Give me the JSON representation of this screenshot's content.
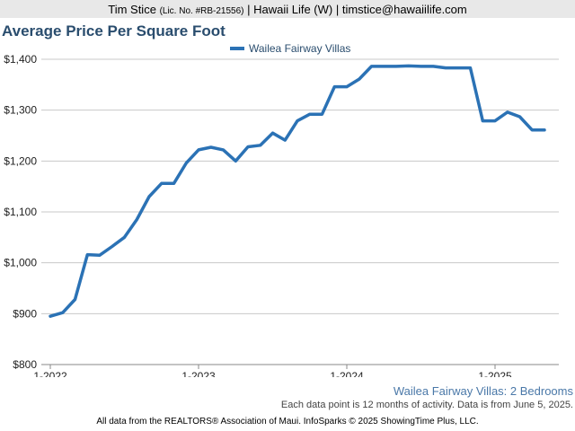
{
  "header": {
    "agent_name": "Tim Stice",
    "license": "(Lic. No. #RB-21556)",
    "rest": "| Hawaii Life (W) | timstice@hawaiilife.com"
  },
  "chart_data": {
    "type": "line",
    "title": "Average Price Per Square Foot",
    "xlabel": "",
    "ylabel": "",
    "ylim": [
      800,
      1400
    ],
    "yticks": [
      800,
      900,
      1000,
      1100,
      1200,
      1300,
      1400
    ],
    "ytick_labels": [
      "$800",
      "$900",
      "$1,000",
      "$1,100",
      "$1,200",
      "$1,300",
      "$1,400"
    ],
    "xticks": [
      "2022-01",
      "2023-01",
      "2024-01",
      "2025-01"
    ],
    "xtick_labels": [
      "1-2022",
      "1-2023",
      "1-2024",
      "1-2025"
    ],
    "x": [
      "2022-01",
      "2022-02",
      "2022-03",
      "2022-04",
      "2022-05",
      "2022-06",
      "2022-07",
      "2022-08",
      "2022-09",
      "2022-10",
      "2022-11",
      "2022-12",
      "2023-01",
      "2023-02",
      "2023-03",
      "2023-04",
      "2023-05",
      "2023-06",
      "2023-07",
      "2023-08",
      "2023-09",
      "2023-10",
      "2023-11",
      "2023-12",
      "2024-01",
      "2024-02",
      "2024-03",
      "2024-04",
      "2024-05",
      "2024-06",
      "2024-07",
      "2024-08",
      "2024-09",
      "2024-10",
      "2024-11",
      "2024-12",
      "2025-01",
      "2025-02",
      "2025-03",
      "2025-04",
      "2025-05"
    ],
    "series": [
      {
        "name": "Wailea Fairway Villas",
        "color": "#2b72b5",
        "values": [
          895,
          902,
          928,
          1016,
          1015,
          1032,
          1050,
          1085,
          1130,
          1156,
          1156,
          1196,
          1222,
          1227,
          1222,
          1200,
          1228,
          1231,
          1255,
          1241,
          1279,
          1292,
          1292,
          1346,
          1346,
          1361,
          1386,
          1386,
          1386,
          1387,
          1386,
          1386,
          1383,
          1383,
          1383,
          1279,
          1279,
          1296,
          1287,
          1261,
          1261
        ]
      }
    ],
    "grid": true,
    "legend": "top-center"
  },
  "subtitle": "Wailea Fairway Villas: 2 Bedrooms",
  "note": "Each data point is 12 months of activity. Data is from June 5, 2025.",
  "footer": "All data from the REALTORS® Association of Maui. InfoSparks © 2025 ShowingTime Plus, LLC."
}
